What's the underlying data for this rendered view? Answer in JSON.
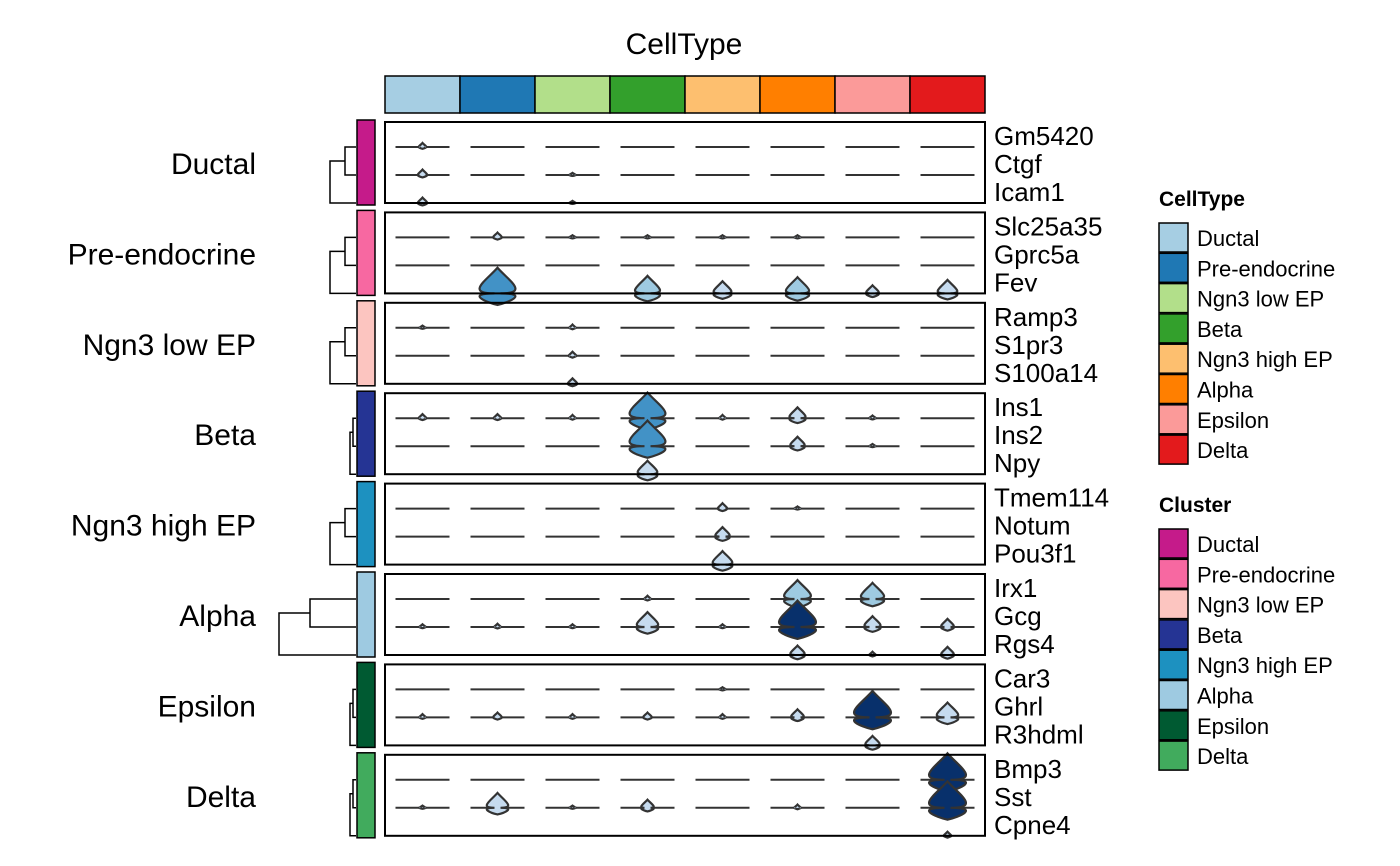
{
  "chart_data": {
    "type": "violin-heatmap",
    "title": "CellType",
    "celltypes": [
      "Ductal",
      "Pre-endocrine",
      "Ngn3 low EP",
      "Beta",
      "Ngn3 high EP",
      "Alpha",
      "Epsilon",
      "Delta"
    ],
    "celltype_colors": [
      "#a6cee3",
      "#1f78b4",
      "#b2df8a",
      "#33a02c",
      "#fdbf6f",
      "#ff7f00",
      "#fb9a99",
      "#e31a1c"
    ],
    "clusters": [
      {
        "name": "Ductal",
        "color": "#c51b8a",
        "genes": [
          "Gm5420",
          "Ctgf",
          "Icam1"
        ]
      },
      {
        "name": "Pre-endocrine",
        "color": "#f768a1",
        "genes": [
          "Slc25a35",
          "Gprc5a",
          "Fev"
        ]
      },
      {
        "name": "Ngn3 low EP",
        "color": "#fcc5c0",
        "genes": [
          "Ramp3",
          "S1pr3",
          "S100a14"
        ]
      },
      {
        "name": "Beta",
        "color": "#253494",
        "genes": [
          "Ins1",
          "Ins2",
          "Npy"
        ]
      },
      {
        "name": "Ngn3 high EP",
        "color": "#1d91c0",
        "genes": [
          "Tmem114",
          "Notum",
          "Pou3f1"
        ]
      },
      {
        "name": "Alpha",
        "color": "#9ecae1",
        "genes": [
          "Irx1",
          "Gcg",
          "Rgs4"
        ]
      },
      {
        "name": "Epsilon",
        "color": "#005a32",
        "genes": [
          "Car3",
          "Ghrl",
          "R3hdml"
        ]
      },
      {
        "name": "Delta",
        "color": "#41ab5d",
        "genes": [
          "Bmp3",
          "Sst",
          "Cpne4"
        ]
      }
    ],
    "expression": [
      [
        0.15,
        0.02,
        0.04,
        0.02,
        0.02,
        0.02,
        0.02,
        0.02
      ],
      [
        0.2,
        0.02,
        0.08,
        0.02,
        0.02,
        0.02,
        0.02,
        0.02
      ],
      [
        0.2,
        0.03,
        0.08,
        0.02,
        0.02,
        0.02,
        0.02,
        0.02
      ],
      [
        0.04,
        0.18,
        0.08,
        0.08,
        0.08,
        0.08,
        0.02,
        0.02
      ],
      [
        0.04,
        0.02,
        0.04,
        0.04,
        0.04,
        0.02,
        0.02,
        0.02
      ],
      [
        0.06,
        0.95,
        0.06,
        0.65,
        0.45,
        0.6,
        0.3,
        0.5
      ],
      [
        0.08,
        0.02,
        0.12,
        0.02,
        0.02,
        0.02,
        0.02,
        0.02
      ],
      [
        0.05,
        0.02,
        0.15,
        0.02,
        0.02,
        0.02,
        0.02,
        0.02
      ],
      [
        0.05,
        0.02,
        0.2,
        0.02,
        0.04,
        0.02,
        0.02,
        0.02
      ],
      [
        0.15,
        0.15,
        0.12,
        0.95,
        0.12,
        0.4,
        0.1,
        0.06
      ],
      [
        0.04,
        0.06,
        0.04,
        0.95,
        0.04,
        0.35,
        0.08,
        0.02
      ],
      [
        0.02,
        0.02,
        0.02,
        0.5,
        0.02,
        0.02,
        0.02,
        0.02
      ],
      [
        0.04,
        0.06,
        0.04,
        0.04,
        0.2,
        0.08,
        0.02,
        0.02
      ],
      [
        0.04,
        0.04,
        0.04,
        0.04,
        0.35,
        0.06,
        0.02,
        0.02
      ],
      [
        0.02,
        0.04,
        0.02,
        0.06,
        0.5,
        0.04,
        0.02,
        0.02
      ],
      [
        0.02,
        0.04,
        0.02,
        0.12,
        0.02,
        0.7,
        0.6,
        0.02
      ],
      [
        0.1,
        0.12,
        0.1,
        0.55,
        0.1,
        0.98,
        0.4,
        0.3
      ],
      [
        0.02,
        0.02,
        0.02,
        0.04,
        0.02,
        0.35,
        0.12,
        0.3
      ],
      [
        0.02,
        0.02,
        0.02,
        0.02,
        0.08,
        0.02,
        0.04,
        0.02
      ],
      [
        0.12,
        0.18,
        0.12,
        0.18,
        0.12,
        0.3,
        0.98,
        0.55
      ],
      [
        0.02,
        0.02,
        0.02,
        0.02,
        0.02,
        0.06,
        0.35,
        0.02
      ],
      [
        0.06,
        0.02,
        0.02,
        0.02,
        0.02,
        0.02,
        0.02,
        0.98
      ],
      [
        0.08,
        0.55,
        0.08,
        0.3,
        0.04,
        0.12,
        0.02,
        0.98
      ],
      [
        0.02,
        0.02,
        0.02,
        0.02,
        0.02,
        0.02,
        0.02,
        0.15
      ]
    ],
    "legends": [
      {
        "title": "CellType",
        "entries": [
          "Ductal",
          "Pre-endocrine",
          "Ngn3 low EP",
          "Beta",
          "Ngn3 high EP",
          "Alpha",
          "Epsilon",
          "Delta"
        ]
      },
      {
        "title": "Cluster",
        "entries": [
          "Ductal",
          "Pre-endocrine",
          "Ngn3 low EP",
          "Beta",
          "Ngn3 high EP",
          "Alpha",
          "Epsilon",
          "Delta"
        ]
      }
    ],
    "legend_position": "right",
    "grid": false
  }
}
